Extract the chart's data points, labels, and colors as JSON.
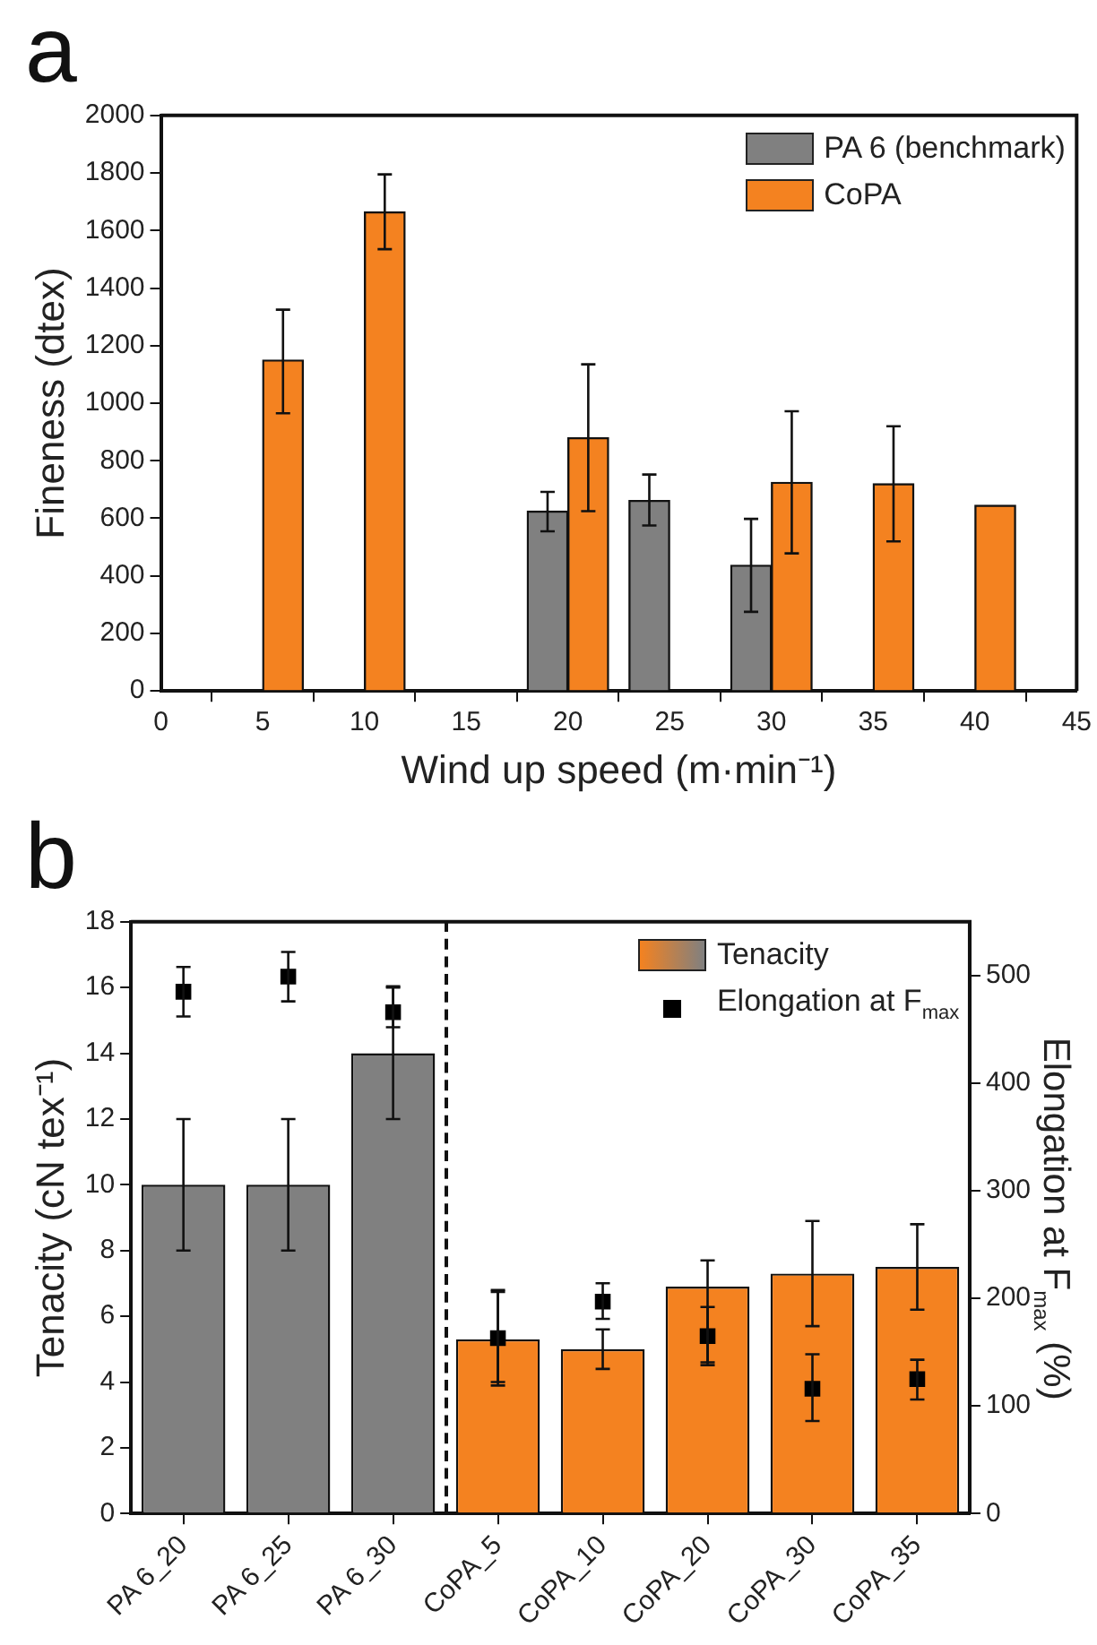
{
  "chart_data": [
    {
      "type": "bar",
      "title": "a",
      "xlabel": "Wind up speed (m·min⁻¹)",
      "ylabel": "Fineness (dtex)",
      "series": [
        {
          "name": "PA 6 (benchmark)",
          "color": "#808080",
          "x": [
            19,
            24,
            29
          ],
          "values": [
            625,
            662,
            437
          ],
          "errors": [
            [
              555,
              692
            ],
            [
              575,
              752
            ],
            [
              275,
              598
            ]
          ]
        },
        {
          "name": "CoPA",
          "color": "#f48220",
          "x": [
            6,
            11,
            21,
            31,
            36,
            41
          ],
          "values": [
            1150,
            1665,
            880,
            725,
            720,
            645
          ],
          "errors": [
            [
              965,
              1325
            ],
            [
              1535,
              1795
            ],
            [
              625,
              1135
            ],
            [
              478,
              972
            ],
            [
              520,
              920
            ],
            null
          ]
        }
      ],
      "xlim": [
        0,
        45
      ],
      "xticks": [
        0,
        5,
        10,
        15,
        20,
        25,
        30,
        35,
        40,
        45
      ],
      "ylim": [
        0,
        2000
      ],
      "yticks": [
        0,
        200,
        400,
        600,
        800,
        1000,
        1200,
        1400,
        1600,
        1800,
        2000
      ],
      "grid": false,
      "legend": "top right"
    },
    {
      "type": "bar",
      "title": "b",
      "ylabel": "Tenacity (cN tex⁻¹)",
      "y2label": "Elongation at F$_{max}$ (%)",
      "categories": [
        "PA 6_20",
        "PA 6_25",
        "PA 6_30",
        "CoPA_5",
        "CoPA_10",
        "CoPA_20",
        "CoPA_30",
        "CoPA_35"
      ],
      "series": [
        {
          "name": "Tenacity",
          "type": "bar",
          "colors": [
            "#808080",
            "#808080",
            "#808080",
            "#f48220",
            "#f48220",
            "#f48220",
            "#f48220",
            "#f48220"
          ],
          "values": [
            10,
            10,
            14,
            5.3,
            5.0,
            6.9,
            7.3,
            7.5
          ],
          "errors": [
            [
              8,
              12
            ],
            [
              8,
              12
            ],
            [
              12,
              16
            ],
            [
              4.0,
              6.8
            ],
            [
              4.4,
              5.6
            ],
            [
              4.6,
              7.7
            ],
            [
              5.7,
              8.9
            ],
            [
              6.2,
              8.8
            ]
          ]
        },
        {
          "name": "Elongation at F$_{max}$",
          "type": "scatter",
          "axis": "y2",
          "color": "#000000",
          "values": [
            485,
            499,
            466,
            163,
            197,
            165,
            116,
            125
          ],
          "errors": [
            [
              462,
              508
            ],
            [
              476,
              522
            ],
            [
              452,
              490
            ],
            [
              119,
              206
            ],
            [
              181,
              214
            ],
            [
              138,
              192
            ],
            [
              86,
              148
            ],
            [
              106,
              143
            ]
          ]
        }
      ],
      "ylim": [
        0,
        18
      ],
      "yticks": [
        0,
        2,
        4,
        6,
        8,
        10,
        12,
        14,
        16,
        18
      ],
      "y2lim": [
        0,
        550
      ],
      "y2ticks": [
        0,
        100,
        200,
        300,
        400,
        500
      ],
      "grid": false,
      "legend": "top right",
      "marker": "square"
    }
  ]
}
